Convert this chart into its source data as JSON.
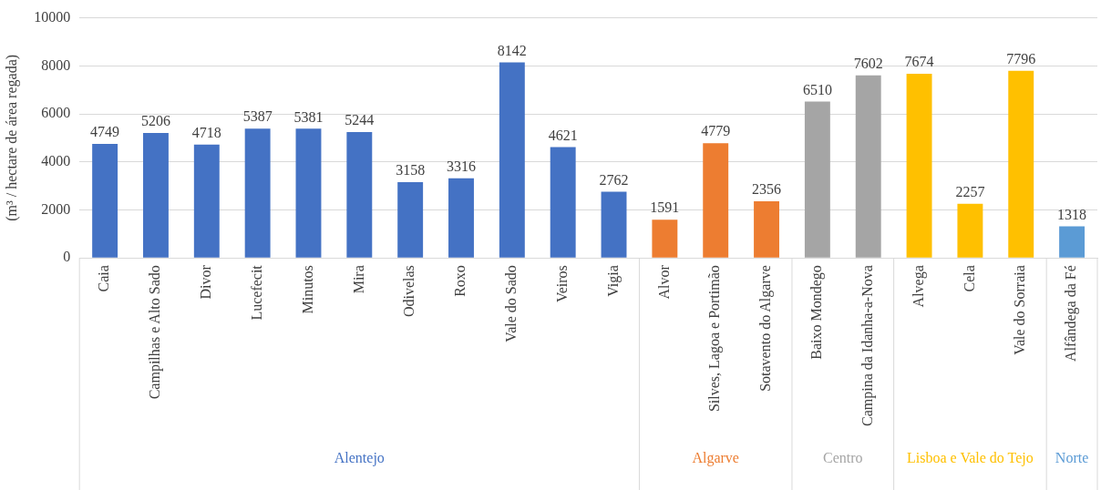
{
  "chart_data": {
    "type": "bar",
    "ylabel": "(m³ / hectare de área regada)",
    "categories": [
      "Caia",
      "Campilhas e Alto Sado",
      "Divor",
      "Lucefecit",
      "Minutos",
      "Mira",
      "Odivelas",
      "Roxo",
      "Vale do Sado",
      "Veiros",
      "Vigia",
      "Alvor",
      "Silves, Lagoa e Portimão",
      "Sotavento do Algarve",
      "Baixo Mondego",
      "Campina da Idanha-a-Nova",
      "Alvega",
      "Cela",
      "Vale do Sorraia",
      "Alfândega da Fé"
    ],
    "series": [
      {
        "name": "Alentejo",
        "color": "#4472c4",
        "values": [
          4749,
          5206,
          4718,
          5387,
          5381,
          5244,
          3158,
          3316,
          8142,
          4621,
          2762,
          null,
          null,
          null,
          null,
          null,
          null,
          null,
          null,
          null
        ]
      },
      {
        "name": "Algarve",
        "color": "#ed7d31",
        "values": [
          null,
          null,
          null,
          null,
          null,
          null,
          null,
          null,
          null,
          null,
          null,
          1591,
          4779,
          2356,
          null,
          null,
          null,
          null,
          null,
          null
        ]
      },
      {
        "name": "Centro",
        "color": "#a5a5a5",
        "values": [
          null,
          null,
          null,
          null,
          null,
          null,
          null,
          null,
          null,
          null,
          null,
          null,
          null,
          null,
          6510,
          7602,
          null,
          null,
          null,
          null
        ]
      },
      {
        "name": "Lisboa e Vale do Tejo",
        "color": "#ffc000",
        "values": [
          null,
          null,
          null,
          null,
          null,
          null,
          null,
          null,
          null,
          null,
          null,
          null,
          null,
          null,
          null,
          null,
          7674,
          2257,
          7796,
          null
        ]
      },
      {
        "name": "Norte",
        "color": "#5b9bd5",
        "values": [
          null,
          null,
          null,
          null,
          null,
          null,
          null,
          null,
          null,
          null,
          null,
          null,
          null,
          null,
          null,
          null,
          null,
          null,
          null,
          1318
        ]
      }
    ],
    "ylim": [
      0,
      10000
    ],
    "yticks": [
      0,
      2000,
      4000,
      6000,
      8000,
      10000
    ],
    "grid": "y",
    "data_labels": true,
    "legend": false
  }
}
